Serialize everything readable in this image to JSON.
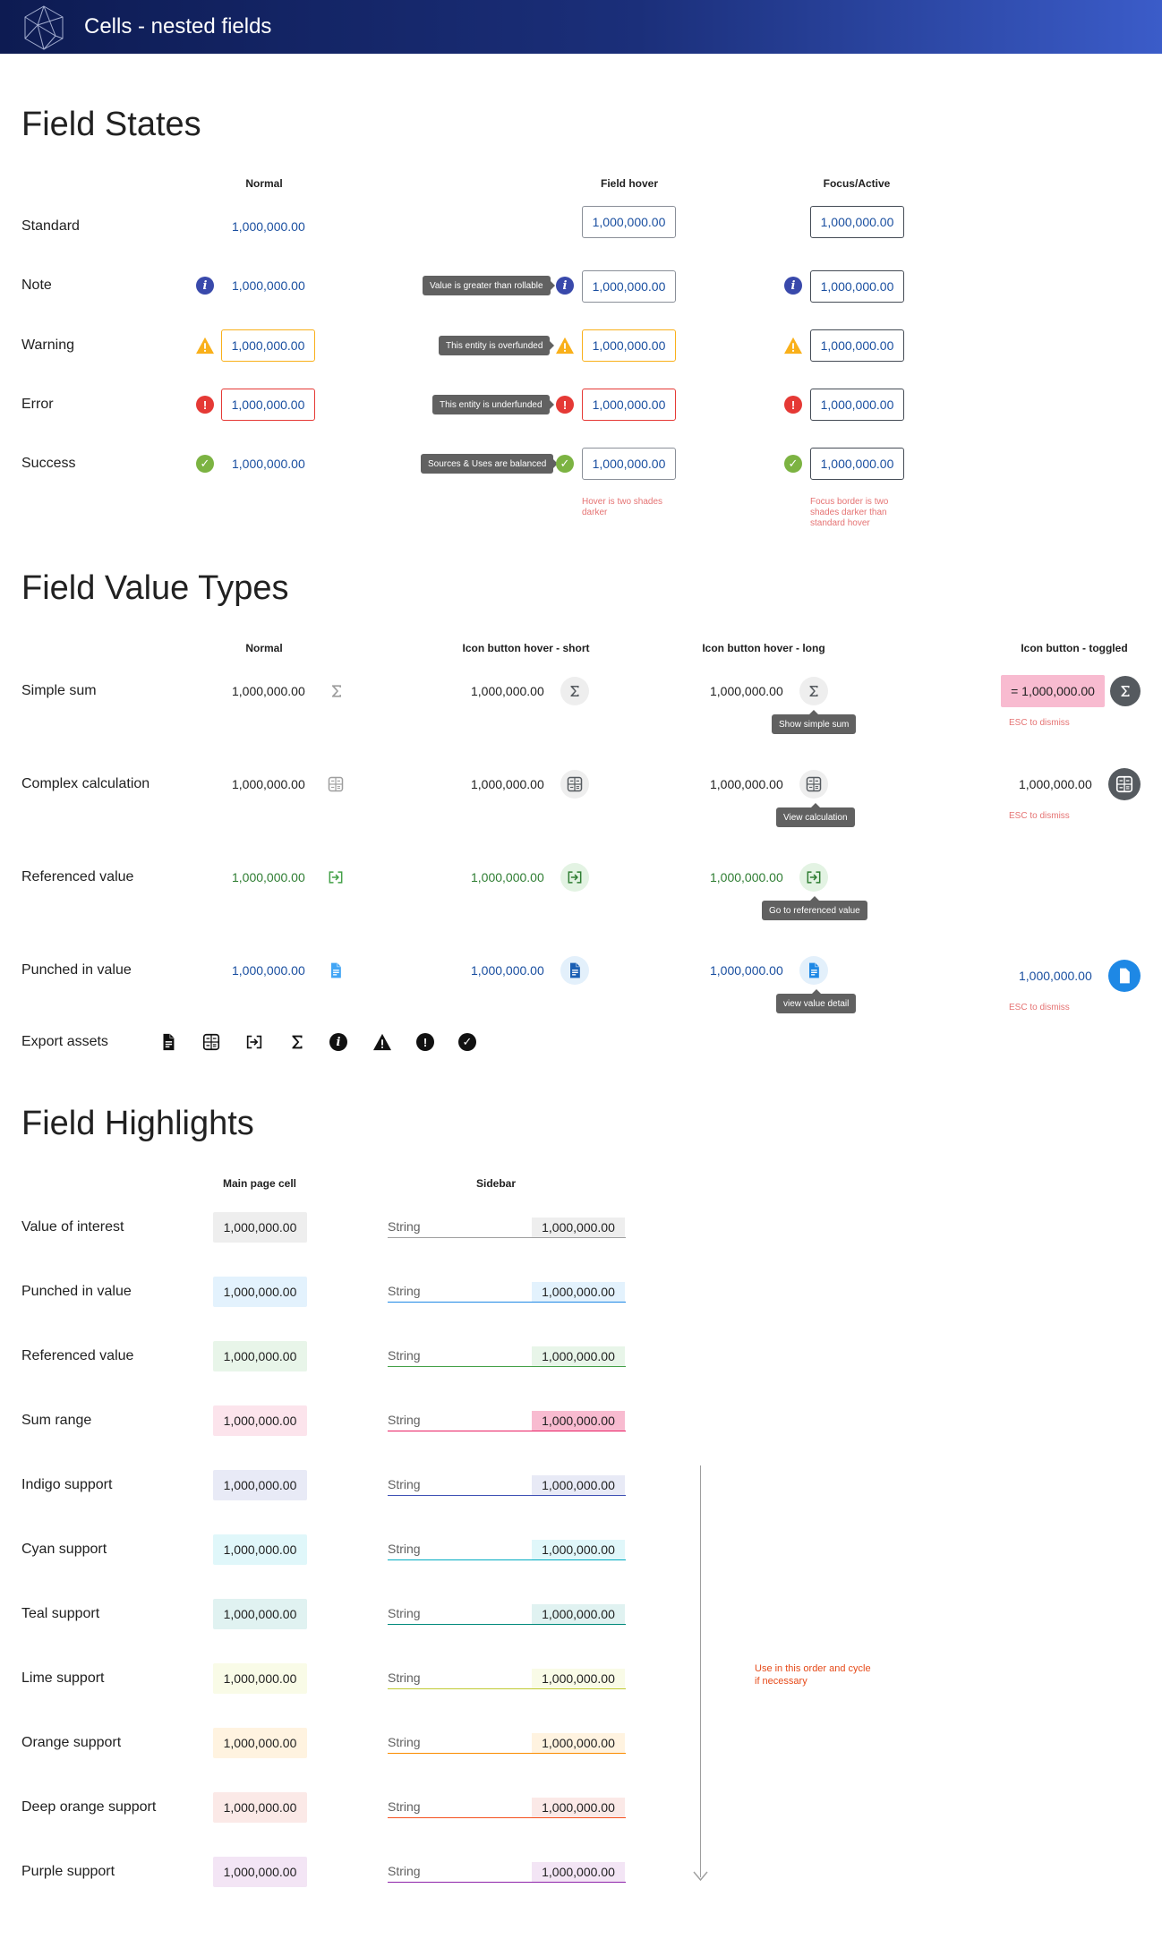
{
  "app": {
    "title": "Cells - nested fields"
  },
  "sections": {
    "field_states": "Field States",
    "field_value_types": "Field Value Types",
    "field_highlights": "Field Highlights"
  },
  "field_states": {
    "columns": {
      "normal": "Normal",
      "hover": "Field hover",
      "focus": "Focus/Active"
    },
    "value": "1,000,000.00",
    "rows": [
      {
        "label": "Standard",
        "tooltip": ""
      },
      {
        "label": "Note",
        "tooltip": "Value is greater than rollable"
      },
      {
        "label": "Warning",
        "tooltip": "This entity is overfunded"
      },
      {
        "label": "Error",
        "tooltip": "This entity is underfunded"
      },
      {
        "label": "Success",
        "tooltip": "Sources & Uses are balanced"
      }
    ],
    "notes": {
      "hover": "Hover is two shades darker",
      "focus": "Focus border is two shades darker than standard hover"
    },
    "colors": {
      "note": "#3949ab",
      "warning": "#f9b01a",
      "error": "#e53935",
      "success": "#7cb342"
    }
  },
  "field_value_types": {
    "columns": {
      "normal": "Normal",
      "hover_short": "Icon button hover - short",
      "hover_long": "Icon button hover - long",
      "toggled": "Icon button - toggled"
    },
    "value": "1,000,000.00",
    "toggled_sum_value": "= 1,000,000.00",
    "esc_hint": "ESC to dismiss",
    "rows": [
      {
        "label": "Simple sum",
        "icon": "sigma-icon",
        "tooltip": "Show simple sum"
      },
      {
        "label": "Complex calculation",
        "icon": "calculator-icon",
        "tooltip": "View calculation"
      },
      {
        "label": "Referenced value",
        "icon": "reference-icon",
        "tooltip": "Go to referenced value"
      },
      {
        "label": "Punched in value",
        "icon": "document-icon",
        "tooltip": "view value detail"
      }
    ],
    "export_label": "Export assets",
    "export_icons": [
      "document-icon",
      "calculator-icon",
      "reference-icon",
      "sigma-icon",
      "info-icon",
      "warning-icon",
      "error-icon",
      "check-icon"
    ]
  },
  "field_highlights": {
    "columns": {
      "main": "Main page cell",
      "sidebar": "Sidebar"
    },
    "value": "1,000,000.00",
    "string_label": "String",
    "order_note": "Use in this order and cycle if necessary",
    "rows": [
      {
        "label": "Value of interest",
        "bg": "#eeeeee",
        "line": "#9e9e9e",
        "sb_bg": "#eeeeee"
      },
      {
        "label": "Punched in value",
        "bg": "#e3f2fd",
        "line": "#1e88e5",
        "sb_bg": "#e3f2fd"
      },
      {
        "label": "Referenced value",
        "bg": "#e8f5e9",
        "line": "#43a047",
        "sb_bg": "#e8f5e9"
      },
      {
        "label": "Sum range",
        "bg": "#fce4ec",
        "line": "#e91e63",
        "sb_bg": "#f8bbd0"
      },
      {
        "label": "Indigo support",
        "bg": "#e8eaf6",
        "line": "#3f51b5",
        "sb_bg": "#e8eaf6"
      },
      {
        "label": "Cyan support",
        "bg": "#e0f7fa",
        "line": "#00acc1",
        "sb_bg": "#e0f7fa"
      },
      {
        "label": "Teal support",
        "bg": "#e0f2f1",
        "line": "#00897b",
        "sb_bg": "#e0f2f1"
      },
      {
        "label": "Lime support",
        "bg": "#f9fbe7",
        "line": "#c0ca33",
        "sb_bg": "#f9fbe7"
      },
      {
        "label": "Orange support",
        "bg": "#fff3e0",
        "line": "#fb8c00",
        "sb_bg": "#fff3e0"
      },
      {
        "label": "Deep orange support",
        "bg": "#fbe9e7",
        "line": "#f4511e",
        "sb_bg": "#fbe9e7"
      },
      {
        "label": "Purple support",
        "bg": "#f3e5f5",
        "line": "#8e24aa",
        "sb_bg": "#f3e5f5"
      }
    ]
  }
}
